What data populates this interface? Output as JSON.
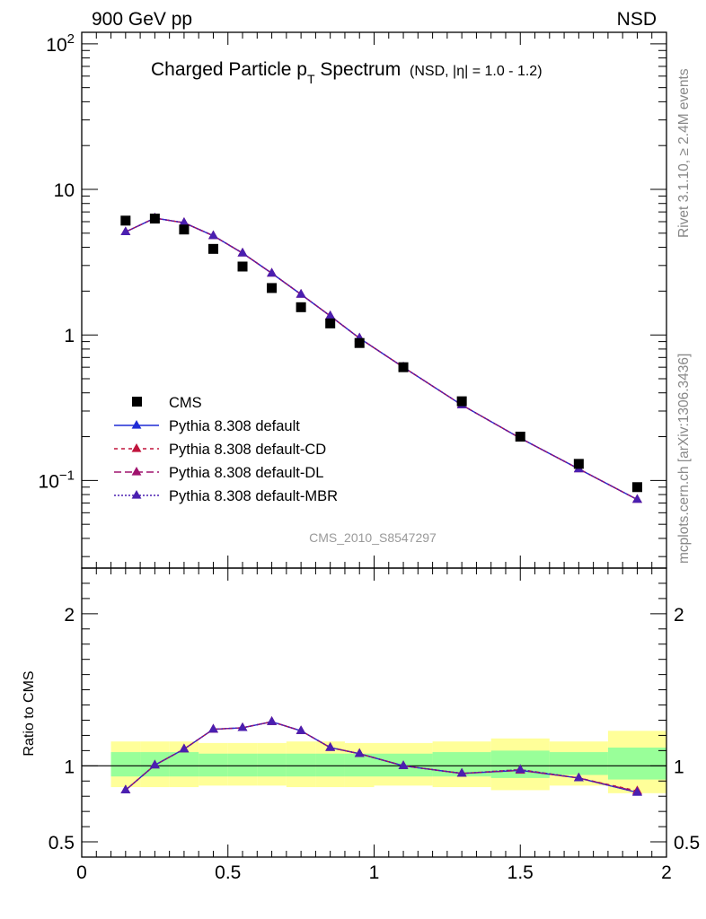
{
  "header": {
    "left": "900 GeV pp",
    "right": "NSD"
  },
  "side_labels": {
    "rivet": "Rivet 3.1.10, ≥ 2.4M events",
    "mcplots": "mcplots.cern.ch [arXiv:1306.3436]"
  },
  "chart_data": [
    {
      "type": "scatter",
      "panel": "main",
      "title_main": "Charged Particle p",
      "title_sub": "T",
      "title_main2": " Spectrum",
      "title_small": "(NSD, |η| = 1.0 - 1.2)",
      "analysis_label": "CMS_2010_S8547297",
      "x_range": [
        0,
        2
      ],
      "y_range": [
        0.025,
        120
      ],
      "y_scale": "log",
      "x_ticks": [
        0,
        0.5,
        1,
        1.5,
        2
      ],
      "y_ticks": [
        {
          "value": 0.1,
          "base": "10",
          "exp": "−1"
        },
        {
          "value": 1,
          "base": "1",
          "exp": ""
        },
        {
          "value": 10,
          "base": "10",
          "exp": ""
        },
        {
          "value": 100,
          "base": "10",
          "exp": "2"
        }
      ],
      "legend_position": "lower-left",
      "data": {
        "name": "CMS",
        "color": "#000000",
        "x": [
          0.15,
          0.25,
          0.35,
          0.45,
          0.55,
          0.65,
          0.75,
          0.85,
          0.95,
          1.1,
          1.3,
          1.5,
          1.7,
          1.9
        ],
        "y": [
          6.1,
          6.3,
          5.3,
          3.9,
          2.95,
          2.1,
          1.55,
          1.2,
          0.88,
          0.6,
          0.35,
          0.2,
          0.13,
          0.09
        ]
      },
      "series": [
        {
          "name": "Pythia 8.308 default",
          "color": "#1f2bd6",
          "dash": "",
          "x": [
            0.15,
            0.25,
            0.35,
            0.45,
            0.55,
            0.65,
            0.75,
            0.85,
            0.95,
            1.1,
            1.3,
            1.5,
            1.7,
            1.9
          ],
          "y": [
            5.1,
            6.35,
            5.9,
            4.8,
            3.65,
            2.65,
            1.9,
            1.35,
            0.95,
            0.6,
            0.33,
            0.195,
            0.12,
            0.074
          ]
        },
        {
          "name": "Pythia 8.308 default-CD",
          "color": "#c0143c",
          "dash": "4,4",
          "x": [
            0.15,
            0.25,
            0.35,
            0.45,
            0.55,
            0.65,
            0.75,
            0.85,
            0.95,
            1.1,
            1.3,
            1.5,
            1.7,
            1.9
          ],
          "y": [
            5.1,
            6.35,
            5.9,
            4.8,
            3.65,
            2.65,
            1.9,
            1.35,
            0.95,
            0.6,
            0.33,
            0.195,
            0.12,
            0.074
          ]
        },
        {
          "name": "Pythia 8.308 default-DL",
          "color": "#a0136e",
          "dash": "8,4",
          "x": [
            0.15,
            0.25,
            0.35,
            0.45,
            0.55,
            0.65,
            0.75,
            0.85,
            0.95,
            1.1,
            1.3,
            1.5,
            1.7,
            1.9
          ],
          "y": [
            5.1,
            6.35,
            5.9,
            4.8,
            3.65,
            2.65,
            1.9,
            1.35,
            0.95,
            0.6,
            0.33,
            0.195,
            0.12,
            0.074
          ]
        },
        {
          "name": "Pythia 8.308 default-MBR",
          "color": "#4a1fb0",
          "dash": "2,2",
          "x": [
            0.15,
            0.25,
            0.35,
            0.45,
            0.55,
            0.65,
            0.75,
            0.85,
            0.95,
            1.1,
            1.3,
            1.5,
            1.7,
            1.9
          ],
          "y": [
            5.1,
            6.35,
            5.9,
            4.8,
            3.65,
            2.65,
            1.9,
            1.35,
            0.95,
            0.6,
            0.33,
            0.195,
            0.12,
            0.074
          ]
        }
      ]
    },
    {
      "type": "line",
      "panel": "ratio",
      "ylabel": "Ratio to CMS",
      "x_range": [
        0,
        2
      ],
      "y_range": [
        0.4,
        2.3
      ],
      "y_ticks": [
        0.5,
        1,
        2
      ],
      "x_ticks": [
        0,
        0.5,
        1,
        1.5,
        2
      ],
      "band_colors": {
        "inner": "#99ff99",
        "outer": "#ffff99"
      },
      "bins": [
        {
          "lo": 0.1,
          "hi": 0.2,
          "inner": [
            0.93,
            1.09
          ],
          "outer": [
            0.86,
            1.16
          ]
        },
        {
          "lo": 0.2,
          "hi": 0.3,
          "inner": [
            0.93,
            1.09
          ],
          "outer": [
            0.86,
            1.16
          ]
        },
        {
          "lo": 0.3,
          "hi": 0.4,
          "inner": [
            0.93,
            1.09
          ],
          "outer": [
            0.86,
            1.16
          ]
        },
        {
          "lo": 0.4,
          "hi": 0.5,
          "inner": [
            0.93,
            1.08
          ],
          "outer": [
            0.87,
            1.15
          ]
        },
        {
          "lo": 0.5,
          "hi": 0.6,
          "inner": [
            0.93,
            1.08
          ],
          "outer": [
            0.87,
            1.15
          ]
        },
        {
          "lo": 0.6,
          "hi": 0.7,
          "inner": [
            0.93,
            1.08
          ],
          "outer": [
            0.87,
            1.15
          ]
        },
        {
          "lo": 0.7,
          "hi": 0.8,
          "inner": [
            0.93,
            1.08
          ],
          "outer": [
            0.86,
            1.16
          ]
        },
        {
          "lo": 0.8,
          "hi": 0.9,
          "inner": [
            0.93,
            1.08
          ],
          "outer": [
            0.86,
            1.16
          ]
        },
        {
          "lo": 0.9,
          "hi": 1.0,
          "inner": [
            0.93,
            1.08
          ],
          "outer": [
            0.86,
            1.15
          ]
        },
        {
          "lo": 1.0,
          "hi": 1.2,
          "inner": [
            0.93,
            1.08
          ],
          "outer": [
            0.87,
            1.15
          ]
        },
        {
          "lo": 1.2,
          "hi": 1.4,
          "inner": [
            0.93,
            1.09
          ],
          "outer": [
            0.86,
            1.16
          ]
        },
        {
          "lo": 1.4,
          "hi": 1.6,
          "inner": [
            0.92,
            1.1
          ],
          "outer": [
            0.84,
            1.18
          ]
        },
        {
          "lo": 1.6,
          "hi": 1.8,
          "inner": [
            0.94,
            1.09
          ],
          "outer": [
            0.87,
            1.16
          ]
        },
        {
          "lo": 1.8,
          "hi": 2.0,
          "inner": [
            0.91,
            1.12
          ],
          "outer": [
            0.82,
            1.23
          ]
        }
      ],
      "series": [
        {
          "name": "Pythia 8.308 default",
          "color": "#1f2bd6",
          "dash": "",
          "x": [
            0.15,
            0.25,
            0.35,
            0.45,
            0.55,
            0.65,
            0.75,
            0.85,
            0.95,
            1.1,
            1.3,
            1.5,
            1.7,
            1.9
          ],
          "y": [
            0.84,
            1.005,
            1.11,
            1.24,
            1.25,
            1.29,
            1.23,
            1.12,
            1.08,
            1.0,
            0.95,
            0.97,
            0.92,
            0.825
          ]
        },
        {
          "name": "Pythia 8.308 default-CD",
          "color": "#c0143c",
          "dash": "4,4",
          "x": [
            0.15,
            0.25,
            0.35,
            0.45,
            0.55,
            0.65,
            0.75,
            0.85,
            0.95,
            1.1,
            1.3,
            1.5,
            1.7,
            1.9
          ],
          "y": [
            0.84,
            1.005,
            1.11,
            1.24,
            1.25,
            1.29,
            1.23,
            1.12,
            1.08,
            1.0,
            0.95,
            0.975,
            0.92,
            0.835
          ]
        },
        {
          "name": "Pythia 8.308 default-DL",
          "color": "#a0136e",
          "dash": "8,4",
          "x": [
            0.15,
            0.25,
            0.35,
            0.45,
            0.55,
            0.65,
            0.75,
            0.85,
            0.95,
            1.1,
            1.3,
            1.5,
            1.7,
            1.9
          ],
          "y": [
            0.84,
            1.005,
            1.11,
            1.24,
            1.25,
            1.29,
            1.23,
            1.12,
            1.08,
            1.0,
            0.95,
            0.97,
            0.92,
            0.83
          ]
        },
        {
          "name": "Pythia 8.308 default-MBR",
          "color": "#4a1fb0",
          "dash": "2,2",
          "x": [
            0.15,
            0.25,
            0.35,
            0.45,
            0.55,
            0.65,
            0.75,
            0.85,
            0.95,
            1.1,
            1.3,
            1.5,
            1.7,
            1.9
          ],
          "y": [
            0.84,
            1.005,
            1.11,
            1.24,
            1.25,
            1.29,
            1.23,
            1.12,
            1.08,
            1.0,
            0.95,
            0.975,
            0.92,
            0.825
          ]
        }
      ]
    }
  ]
}
